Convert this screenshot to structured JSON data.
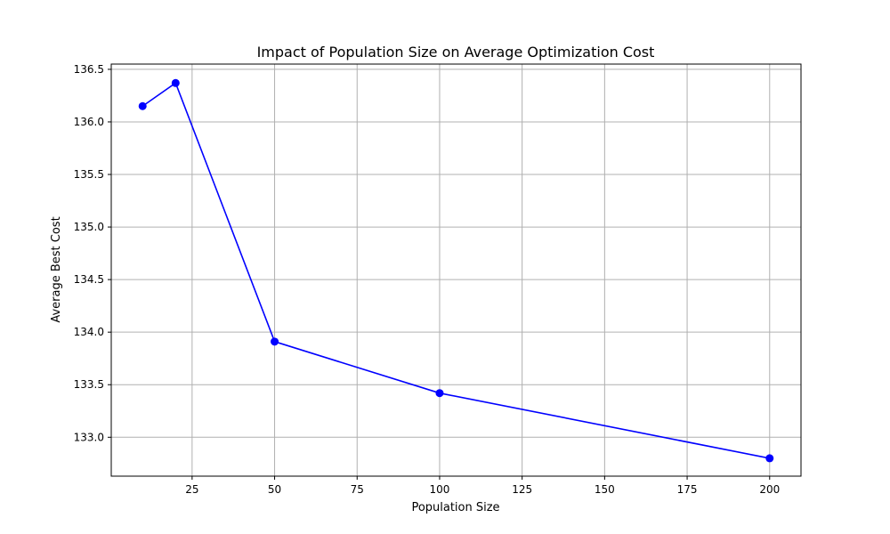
{
  "chart_data": {
    "type": "line",
    "title": "Impact of Population Size on Average Optimization Cost",
    "xlabel": "Population Size",
    "ylabel": "Average Best Cost",
    "x": [
      10,
      20,
      50,
      100,
      200
    ],
    "series": [
      {
        "values": [
          136.15,
          136.37,
          133.91,
          133.42,
          132.8
        ],
        "color": "#0000ff",
        "marker": "circle"
      }
    ],
    "xlim": [
      0.5,
      209.5
    ],
    "ylim": [
      132.63,
      136.55
    ],
    "xticks": [
      25,
      50,
      75,
      100,
      125,
      150,
      175,
      200
    ],
    "xtick_labels": [
      "25",
      "50",
      "75",
      "100",
      "125",
      "150",
      "175",
      "200"
    ],
    "yticks": [
      133.0,
      133.5,
      134.0,
      134.5,
      135.0,
      135.5,
      136.0,
      136.5
    ],
    "ytick_labels": [
      "133.0",
      "133.5",
      "134.0",
      "134.5",
      "135.0",
      "135.5",
      "136.0",
      "136.5"
    ],
    "grid": true,
    "legend": "none"
  }
}
